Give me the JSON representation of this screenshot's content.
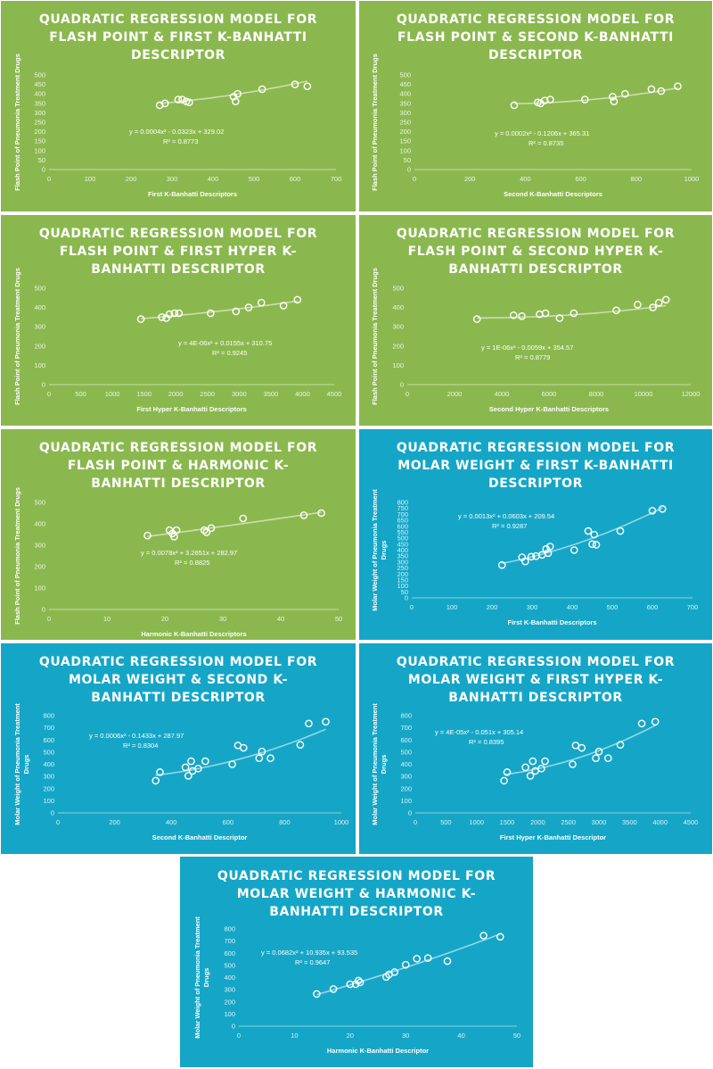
{
  "colors": {
    "green": "#8ab84e",
    "teal": "#15a6c7",
    "marks": "#ffffff"
  },
  "chart_data": [
    {
      "type": "scatter",
      "title": [
        "QUADRATIC REGRESSION MODEL FOR",
        "FLASH POINT & FIRST K-BANHATTI",
        "DESCRIPTOR"
      ],
      "xlabel": "First K-Banhatti Descriptors",
      "ylabel": [
        "Flash Point of Pneumonia Treatment Drugs"
      ],
      "xlim": [
        0,
        700
      ],
      "xticks": [
        0,
        100,
        200,
        300,
        400,
        500,
        600,
        700
      ],
      "ylim": [
        0,
        500
      ],
      "yticks": [
        0,
        50,
        100,
        150,
        200,
        250,
        300,
        350,
        400,
        450,
        500
      ],
      "equation": "y = 0.0004x² - 0.0323x + 329.02",
      "r2": "R² = 0.8773",
      "coef": [
        0.0004,
        -0.0323,
        329.02
      ],
      "points": [
        [
          270,
          340
        ],
        [
          283,
          350
        ],
        [
          315,
          370
        ],
        [
          325,
          370
        ],
        [
          335,
          360
        ],
        [
          342,
          355
        ],
        [
          450,
          385
        ],
        [
          455,
          360
        ],
        [
          460,
          400
        ],
        [
          520,
          425
        ],
        [
          600,
          450
        ],
        [
          630,
          440
        ]
      ],
      "grid": false
    },
    {
      "type": "scatter",
      "title": [
        "QUADRATIC REGRESSION MODEL FOR",
        "FLASH POINT & SECOND K-BANHATTI",
        "DESCRIPTOR"
      ],
      "xlabel": "Second K-Banhatti Descriptors",
      "ylabel": [
        "Flash Point of Pneumonia Treatment Drugs"
      ],
      "xlim": [
        0,
        1000
      ],
      "xticks": [
        0,
        200,
        400,
        600,
        800,
        1000
      ],
      "ylim": [
        0,
        500
      ],
      "yticks": [
        0,
        50,
        100,
        150,
        200,
        250,
        300,
        350,
        400,
        450,
        500
      ],
      "equation": "y = 0.0002x² - 0.1206x + 365.31",
      "r2": "R² = 0.8735",
      "coef": [
        0.0002,
        -0.1206,
        365.31
      ],
      "points": [
        [
          360,
          340
        ],
        [
          445,
          355
        ],
        [
          455,
          350
        ],
        [
          470,
          365
        ],
        [
          490,
          370
        ],
        [
          615,
          370
        ],
        [
          715,
          385
        ],
        [
          720,
          360
        ],
        [
          760,
          400
        ],
        [
          855,
          425
        ],
        [
          890,
          415
        ],
        [
          950,
          440
        ]
      ],
      "grid": false
    },
    {
      "type": "scatter",
      "title": [
        "QUADRATIC REGRESSION MODEL FOR",
        "FLASH POINT & FIRST HYPER K-",
        "BANHATTI DESCRIPTOR"
      ],
      "xlabel": "First Hyper K-Banhatti Descriptors",
      "ylabel": [
        "Flash Point of Pneumonia Treatment Drugs"
      ],
      "xlim": [
        0,
        4500
      ],
      "xticks": [
        0,
        500,
        1000,
        1500,
        2000,
        2500,
        3000,
        3500,
        4000,
        4500
      ],
      "ylim": [
        0,
        500
      ],
      "yticks": [
        0,
        100,
        200,
        300,
        400,
        500
      ],
      "equation": "y = 4E-06x² + 0.0155x + 310.75",
      "r2": "R² = 0.9245",
      "coef": [
        4e-06,
        0.0155,
        310.75
      ],
      "points": [
        [
          1450,
          340
        ],
        [
          1780,
          350
        ],
        [
          1850,
          345
        ],
        [
          1900,
          365
        ],
        [
          1980,
          370
        ],
        [
          2050,
          370
        ],
        [
          2550,
          370
        ],
        [
          2950,
          380
        ],
        [
          3150,
          400
        ],
        [
          3350,
          425
        ],
        [
          3700,
          410
        ],
        [
          3920,
          440
        ]
      ],
      "grid": false
    },
    {
      "type": "scatter",
      "title": [
        "QUADRATIC REGRESSION MODEL FOR",
        "FLASH POINT & SECOND HYPER K-",
        "BANHATTI DESCRIPTOR"
      ],
      "xlabel": "Second Hyper K-Banhatti Descriptors",
      "ylabel": [
        "Flash Point of Pneumonia Treatment Drugs"
      ],
      "xlim": [
        0,
        12000
      ],
      "xticks": [
        0,
        2000,
        4000,
        6000,
        8000,
        10000,
        12000
      ],
      "ylim": [
        0,
        500
      ],
      "yticks": [
        0,
        100,
        200,
        300,
        400,
        500
      ],
      "equation": "y = 1E-06x² - 0.0059x + 354.57",
      "r2": "R² = 0.8779",
      "coef": [
        1e-06,
        -0.0059,
        354.57
      ],
      "points": [
        [
          2950,
          340
        ],
        [
          4500,
          360
        ],
        [
          4850,
          355
        ],
        [
          5600,
          365
        ],
        [
          5850,
          370
        ],
        [
          6450,
          345
        ],
        [
          7050,
          370
        ],
        [
          8850,
          385
        ],
        [
          9750,
          415
        ],
        [
          10400,
          400
        ],
        [
          10650,
          425
        ],
        [
          10950,
          440
        ]
      ],
      "grid": false
    },
    {
      "type": "scatter",
      "title": [
        "QUADRATIC REGRESSION MODEL FOR",
        "FLASH POINT & HARMONIC K-",
        "BANHATTI DESCRIPTOR"
      ],
      "xlabel": "Harmonic K-Banhatti Descriptors",
      "ylabel": [
        "Flash Point of Pneumonia Treatment Drugs"
      ],
      "xlim": [
        0,
        50
      ],
      "xticks": [
        0,
        10,
        20,
        30,
        40,
        50
      ],
      "ylim": [
        0,
        500
      ],
      "yticks": [
        0,
        100,
        200,
        300,
        400,
        500
      ],
      "equation": "y = 0.0078x² + 3.2651x + 282.97",
      "r2": "R² = 0.8825",
      "coef": [
        0.0078,
        3.2651,
        282.97
      ],
      "points": [
        [
          17,
          345
        ],
        [
          20.8,
          370
        ],
        [
          21.3,
          355
        ],
        [
          21.6,
          340
        ],
        [
          22,
          370
        ],
        [
          26.8,
          370
        ],
        [
          27.2,
          360
        ],
        [
          28,
          380
        ],
        [
          33.5,
          425
        ],
        [
          44,
          440
        ],
        [
          47,
          450
        ]
      ],
      "grid": false
    },
    {
      "type": "scatter",
      "title": [
        "QUADRATIC REGRESSION MODEL FOR",
        "MOLAR WEIGHT & FIRST K-BANHATTI",
        "DESCRIPTOR"
      ],
      "xlabel": "First K-Banhatti Descriptors",
      "ylabel": [
        "Molar Weight of Pneumonia Treatment",
        "Drugs"
      ],
      "xlim": [
        0,
        700
      ],
      "xticks": [
        0,
        100,
        200,
        300,
        400,
        500,
        600,
        700
      ],
      "ylim": [
        0,
        800
      ],
      "yticks": [
        0,
        50,
        100,
        150,
        200,
        250,
        300,
        350,
        400,
        450,
        500,
        550,
        600,
        650,
        700,
        750,
        800
      ],
      "equation": "y = 0.0013x² + 0.0603x + 209.54",
      "r2": "R² = 0.9287",
      "coef": [
        0.0013,
        0.0603,
        209.54
      ],
      "points": [
        [
          225,
          275
        ],
        [
          275,
          340
        ],
        [
          283,
          305
        ],
        [
          298,
          345
        ],
        [
          310,
          350
        ],
        [
          325,
          360
        ],
        [
          335,
          410
        ],
        [
          340,
          375
        ],
        [
          345,
          430
        ],
        [
          405,
          400
        ],
        [
          440,
          560
        ],
        [
          450,
          450
        ],
        [
          455,
          530
        ],
        [
          460,
          445
        ],
        [
          520,
          560
        ],
        [
          600,
          730
        ],
        [
          625,
          745
        ]
      ],
      "grid": false
    },
    {
      "type": "scatter",
      "title": [
        "QUADRATIC REGRESSION MODEL FOR",
        "MOLAR WEIGHT & SECOND K-",
        "BANHATTI DESCRIPTOR"
      ],
      "xlabel": "Second K-Banhatti Descriptor",
      "ylabel": [
        "Molar Weight of Pneumonia Treatment",
        "Drugs"
      ],
      "xlim": [
        0,
        1000
      ],
      "xticks": [
        0,
        200,
        400,
        600,
        800,
        1000
      ],
      "ylim": [
        0,
        800
      ],
      "yticks": [
        0,
        100,
        200,
        300,
        400,
        500,
        600,
        700,
        800
      ],
      "equation": "y = 0.0006x² - 0.1433x + 287.97",
      "r2": "R² = 0.8304",
      "coef": [
        0.0006,
        -0.1433,
        287.97
      ],
      "points": [
        [
          345,
          265
        ],
        [
          360,
          335
        ],
        [
          450,
          375
        ],
        [
          460,
          305
        ],
        [
          470,
          425
        ],
        [
          475,
          345
        ],
        [
          495,
          365
        ],
        [
          520,
          425
        ],
        [
          615,
          400
        ],
        [
          635,
          555
        ],
        [
          655,
          535
        ],
        [
          710,
          450
        ],
        [
          720,
          505
        ],
        [
          750,
          450
        ],
        [
          855,
          560
        ],
        [
          885,
          735
        ],
        [
          945,
          750
        ]
      ],
      "grid": false
    },
    {
      "type": "scatter",
      "title": [
        "QUADRATIC REGRESSION MODEL FOR",
        "MOLAR WEIGHT & FIRST HYPER K-",
        "BANHATTI DESCRIPTOR"
      ],
      "xlabel": "First Hyper K-Banhatti Descriptor",
      "ylabel": [
        "Molar Weight of Pneumonia Treatment",
        "Drugs"
      ],
      "xlim": [
        0,
        4500
      ],
      "xticks": [
        0,
        500,
        1000,
        1500,
        2000,
        2500,
        3000,
        3500,
        4000,
        4500
      ],
      "ylim": [
        0,
        800
      ],
      "yticks": [
        0,
        100,
        200,
        300,
        400,
        500,
        600,
        700,
        800
      ],
      "equation": "y = 4E-05x² - 0.051x + 305.14",
      "r2": "R² = 0.8395",
      "coef": [
        4e-05,
        -0.051,
        305.14
      ],
      "points": [
        [
          1450,
          265
        ],
        [
          1500,
          335
        ],
        [
          1800,
          375
        ],
        [
          1880,
          305
        ],
        [
          1920,
          425
        ],
        [
          1960,
          345
        ],
        [
          2060,
          365
        ],
        [
          2120,
          425
        ],
        [
          2570,
          400
        ],
        [
          2620,
          555
        ],
        [
          2720,
          535
        ],
        [
          2950,
          450
        ],
        [
          3000,
          505
        ],
        [
          3150,
          450
        ],
        [
          3350,
          560
        ],
        [
          3700,
          735
        ],
        [
          3920,
          750
        ]
      ],
      "grid": false
    },
    {
      "type": "scatter",
      "title": [
        "QUADRATIC REGRESSION MODEL FOR",
        "MOLAR WEIGHT & HARMONIC K-",
        "BANHATTI DESCRIPTOR"
      ],
      "xlabel": "Harmonic K-Banhatti Descriptor",
      "ylabel": [
        "Molar Weight of Pneumonia Treatment",
        "Drugs"
      ],
      "xlim": [
        0,
        50
      ],
      "xticks": [
        0,
        10,
        20,
        30,
        40,
        50
      ],
      "ylim": [
        0,
        800
      ],
      "yticks": [
        0,
        100,
        200,
        300,
        400,
        500,
        600,
        700,
        800
      ],
      "equation": "y = 0.0682x² + 10.935x + 93.535",
      "r2": "R² = 0.9647",
      "coef": [
        0.0682,
        10.935,
        93.535
      ],
      "points": [
        [
          14,
          265
        ],
        [
          17,
          305
        ],
        [
          20,
          345
        ],
        [
          21,
          345
        ],
        [
          21.5,
          375
        ],
        [
          21.8,
          360
        ],
        [
          26.5,
          405
        ],
        [
          27,
          425
        ],
        [
          28,
          445
        ],
        [
          30,
          505
        ],
        [
          32,
          555
        ],
        [
          34,
          560
        ],
        [
          37.5,
          535
        ],
        [
          44,
          745
        ],
        [
          47,
          735
        ]
      ],
      "grid": false
    }
  ]
}
